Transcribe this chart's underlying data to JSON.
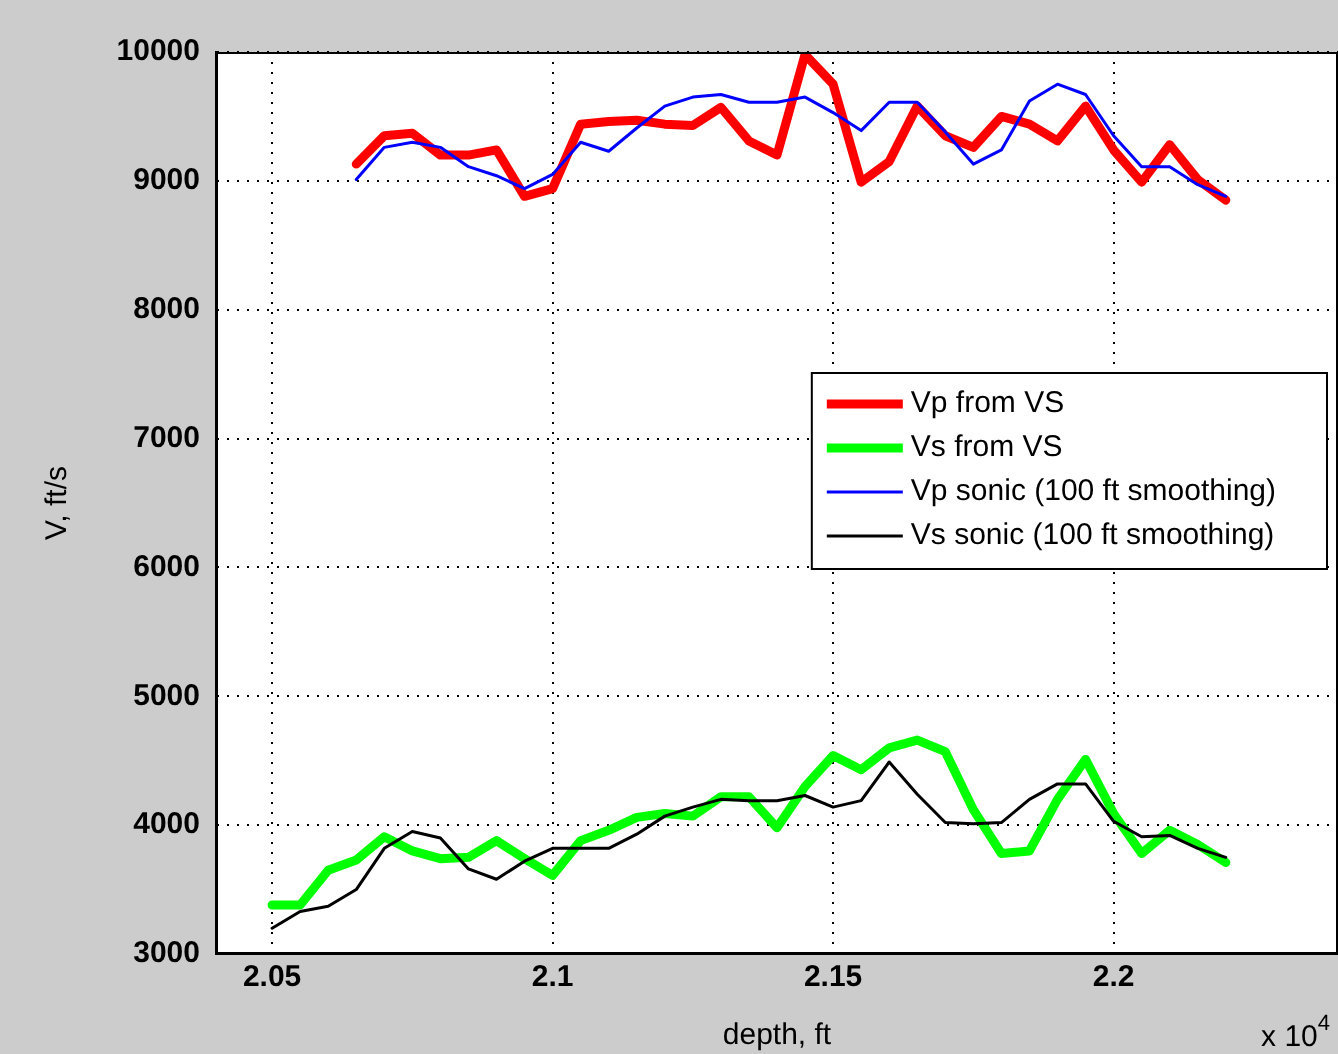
{
  "chart_data": {
    "type": "line",
    "xlabel": "depth, ft",
    "ylabel": "V, ft/s",
    "xlim": [
      2.04,
      2.24
    ],
    "xticks": [
      2.05,
      2.1,
      2.15,
      2.2
    ],
    "ylim": [
      3000,
      10000
    ],
    "yticks": [
      3000,
      4000,
      5000,
      6000,
      7000,
      8000,
      9000,
      10000
    ],
    "grid": true,
    "legend": "right",
    "marker": "none",
    "line_style": "solid",
    "annotations": [
      "x 10$^{4}$"
    ],
    "series": [
      {
        "name": "Vp from VS",
        "color": "#ff0000",
        "x": [
          2.065,
          2.07,
          2.075,
          2.08,
          2.085,
          2.09,
          2.095,
          2.1,
          2.105,
          2.11,
          2.115,
          2.12,
          2.125,
          2.13,
          2.135,
          2.14,
          2.145,
          2.15,
          2.155,
          2.16,
          2.165,
          2.17,
          2.175,
          2.18,
          2.185,
          2.19,
          2.195,
          2.2,
          2.205,
          2.21,
          2.215,
          2.22
        ],
        "values": [
          9130,
          9350,
          9370,
          9200,
          9200,
          9240,
          8880,
          8940,
          9440,
          9460,
          9470,
          9440,
          9430,
          9570,
          9310,
          9200,
          9980,
          9750,
          8990,
          9150,
          9580,
          9350,
          9260,
          9500,
          9440,
          9310,
          9580,
          9240,
          8990,
          9280,
          9010,
          8850
        ]
      },
      {
        "name": "Vs from VS",
        "color": "#00ff00",
        "x": [
          2.05,
          2.055,
          2.06,
          2.065,
          2.07,
          2.075,
          2.08,
          2.085,
          2.09,
          2.095,
          2.1,
          2.105,
          2.11,
          2.115,
          2.12,
          2.125,
          2.13,
          2.135,
          2.14,
          2.145,
          2.15,
          2.155,
          2.16,
          2.165,
          2.17,
          2.175,
          2.18,
          2.185,
          2.19,
          2.195,
          2.2,
          2.205,
          2.21,
          2.215,
          2.22
        ],
        "values": [
          3380,
          3380,
          3650,
          3730,
          3910,
          3800,
          3740,
          3750,
          3880,
          3740,
          3610,
          3880,
          3960,
          4060,
          4090,
          4070,
          4220,
          4220,
          3980,
          4300,
          4540,
          4430,
          4600,
          4660,
          4570,
          4120,
          3780,
          3800,
          4200,
          4510,
          4090,
          3780,
          3960,
          3850,
          3710
        ]
      },
      {
        "name": "Vp sonic (100 ft smoothing)",
        "color": "#0000ff",
        "x": [
          2.065,
          2.07,
          2.075,
          2.08,
          2.085,
          2.09,
          2.095,
          2.1,
          2.105,
          2.11,
          2.115,
          2.12,
          2.125,
          2.13,
          2.135,
          2.14,
          2.145,
          2.15,
          2.155,
          2.16,
          2.165,
          2.17,
          2.175,
          2.18,
          2.185,
          2.19,
          2.195,
          2.2,
          2.205,
          2.21,
          2.215,
          2.22
        ],
        "values": [
          9010,
          9260,
          9300,
          9260,
          9110,
          9040,
          8940,
          9050,
          9300,
          9230,
          9410,
          9580,
          9650,
          9670,
          9610,
          9610,
          9650,
          9530,
          9390,
          9610,
          9610,
          9380,
          9130,
          9240,
          9620,
          9750,
          9670,
          9350,
          9110,
          9110,
          8970,
          8880
        ]
      },
      {
        "name": "Vs sonic (100 ft smoothing)",
        "color": "#000000",
        "x": [
          2.05,
          2.055,
          2.06,
          2.065,
          2.07,
          2.075,
          2.08,
          2.085,
          2.09,
          2.095,
          2.1,
          2.105,
          2.11,
          2.115,
          2.12,
          2.125,
          2.13,
          2.135,
          2.14,
          2.145,
          2.15,
          2.155,
          2.16,
          2.165,
          2.17,
          2.175,
          2.18,
          2.185,
          2.19,
          2.195,
          2.2,
          2.205,
          2.21,
          2.215,
          2.22
        ],
        "values": [
          3200,
          3330,
          3370,
          3500,
          3820,
          3950,
          3900,
          3660,
          3580,
          3720,
          3820,
          3820,
          3820,
          3930,
          4070,
          4140,
          4200,
          4190,
          4190,
          4230,
          4140,
          4190,
          4490,
          4240,
          4020,
          4010,
          4020,
          4200,
          4320,
          4320,
          4030,
          3910,
          3920,
          3820,
          3750
        ]
      }
    ]
  }
}
